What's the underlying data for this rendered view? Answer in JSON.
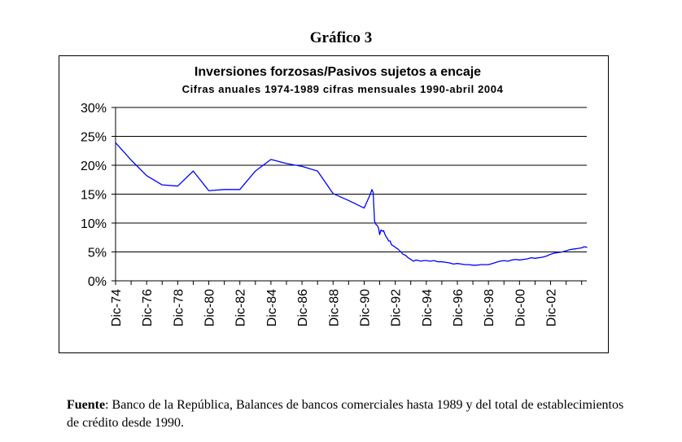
{
  "heading": "Gráfico 3",
  "source": {
    "label": "Fuente",
    "text": ": Banco de la República, Balances de bancos comerciales hasta 1989 y del total de establecimientos de crédito desde 1990."
  },
  "chart_data": {
    "type": "line",
    "title": "Inversiones forzosas/Pasivos sujetos a encaje",
    "subtitle": "Cifras anuales 1974-1989 cifras mensuales 1990-abril 2004",
    "xlabel": "",
    "ylabel": "",
    "ylim": [
      0,
      30
    ],
    "xlim": [
      1974,
      2004.33
    ],
    "y_ticks": [
      0,
      5,
      10,
      15,
      20,
      25,
      30
    ],
    "y_tick_labels": [
      "0%",
      "5%",
      "10%",
      "15%",
      "20%",
      "25%",
      "30%"
    ],
    "x_ticks": [
      1974,
      1976,
      1978,
      1980,
      1982,
      1984,
      1986,
      1988,
      1990,
      1992,
      1994,
      1996,
      1998,
      2000,
      2002
    ],
    "x_tick_labels": [
      "Dic-74",
      "Dic-76",
      "Dic-78",
      "Dic-80",
      "Dic-82",
      "Dic-84",
      "Dic-86",
      "Dic-88",
      "Dic-90",
      "Dic-92",
      "Dic-94",
      "Dic-96",
      "Dic-98",
      "Dic-00",
      "Dic-02"
    ],
    "grid": true,
    "series_color": "#0000ff",
    "series": [
      {
        "name": "Inversiones forzosas/Pasivos sujetos a encaje",
        "x": [
          1974,
          1975,
          1976,
          1977,
          1978,
          1979,
          1980,
          1981,
          1982,
          1983,
          1984,
          1985,
          1986,
          1987,
          1988,
          1989,
          1990,
          1990.4,
          1990.5,
          1990.58,
          1990.67,
          1990.75,
          1990.83,
          1990.92,
          1991,
          1991.08,
          1991.17,
          1991.25,
          1991.33,
          1991.42,
          1991.5,
          1991.58,
          1991.67,
          1991.75,
          1991.83,
          1991.92,
          1992,
          1992.17,
          1992.33,
          1992.5,
          1992.67,
          1992.83,
          1993,
          1993.17,
          1993.33,
          1993.5,
          1993.67,
          1993.83,
          1994,
          1994.25,
          1994.5,
          1994.75,
          1995,
          1995.25,
          1995.5,
          1995.75,
          1996,
          1996.25,
          1996.5,
          1996.75,
          1997,
          1997.25,
          1997.5,
          1997.75,
          1998,
          1998.25,
          1998.5,
          1998.75,
          1999,
          1999.25,
          1999.5,
          1999.75,
          2000,
          2000.25,
          2000.5,
          2000.75,
          2001,
          2001.25,
          2001.5,
          2001.75,
          2002,
          2002.25,
          2002.5,
          2002.75,
          2003,
          2003.25,
          2003.5,
          2003.75,
          2004,
          2004.17,
          2004.33
        ],
        "values": [
          23.9,
          20.9,
          18.2,
          16.6,
          16.4,
          19.0,
          15.6,
          15.8,
          15.8,
          19.0,
          21.0,
          20.3,
          19.8,
          19.0,
          15.1,
          13.9,
          12.6,
          15.0,
          15.8,
          15.3,
          10.3,
          9.8,
          9.6,
          9.2,
          8.0,
          8.8,
          8.6,
          8.7,
          8.1,
          7.6,
          7.3,
          6.9,
          6.9,
          6.3,
          6.1,
          6.0,
          5.8,
          5.5,
          5.1,
          4.6,
          4.4,
          4.0,
          3.7,
          3.4,
          3.6,
          3.5,
          3.4,
          3.5,
          3.5,
          3.4,
          3.5,
          3.3,
          3.3,
          3.2,
          3.1,
          2.9,
          3.0,
          2.9,
          2.8,
          2.8,
          2.7,
          2.7,
          2.8,
          2.8,
          2.8,
          3.0,
          3.2,
          3.4,
          3.5,
          3.4,
          3.6,
          3.7,
          3.6,
          3.7,
          3.8,
          4.0,
          3.9,
          4.0,
          4.1,
          4.3,
          4.6,
          4.8,
          4.9,
          5.0,
          5.2,
          5.4,
          5.5,
          5.6,
          5.7,
          5.9,
          5.8
        ]
      }
    ]
  }
}
